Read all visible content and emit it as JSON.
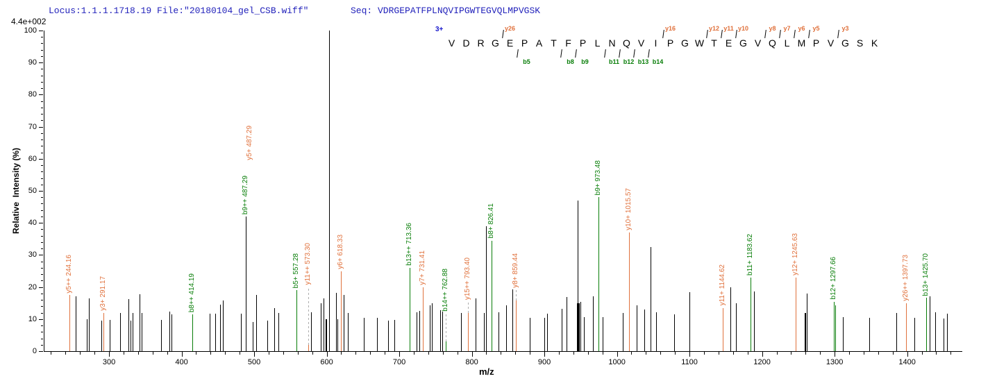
{
  "header": {
    "locus_file": "Locus:1.1.1.1718.19 File:\"20180104_gel_CSB.wiff\"",
    "seq": "Seq: VDRGEPATFPLNQVIPGWTEGVQLMPVGSK",
    "text_color": "#2222BB"
  },
  "base_peak_intensity": "4.4e+002",
  "colors": {
    "y_ion": "#E0713C",
    "b_ion": "#077D07",
    "unassigned": "#000000",
    "dash": "#ADADAD"
  },
  "chart_data": {
    "type": "bar",
    "subtype": "ms2-centroided-mass-spectrum",
    "xlabel": "m/z",
    "ylabel": "Relative  Intensity (%)",
    "xlim": [
      210,
      1475
    ],
    "ylim": [
      0,
      100
    ],
    "x_major_ticks": [
      300,
      400,
      500,
      600,
      700,
      800,
      900,
      1000,
      1100,
      1200,
      1300,
      1400
    ],
    "x_minor_step": 20,
    "y_major_step": 10,
    "y_minor_step": 2,
    "grid": false,
    "legend": "none",
    "sequence_annotation": {
      "charge": "3+",
      "letters": [
        "V",
        "D",
        "R",
        "G",
        "E",
        "P",
        "A",
        "T",
        "F",
        "P",
        "L",
        "N",
        "Q",
        "V",
        "I",
        "P",
        "G",
        "W",
        "T",
        "E",
        "G",
        "V",
        "Q",
        "L",
        "M",
        "P",
        "V",
        "G",
        "S",
        "K"
      ],
      "y_ions": [
        {
          "label": "y26",
          "pos": 4
        },
        {
          "label": "y16",
          "pos": 15
        },
        {
          "label": "y12",
          "pos": 18
        },
        {
          "label": "y11",
          "pos": 19
        },
        {
          "label": "y10",
          "pos": 20
        },
        {
          "label": "y8",
          "pos": 22
        },
        {
          "label": "y7",
          "pos": 23
        },
        {
          "label": "y6",
          "pos": 24
        },
        {
          "label": "y5",
          "pos": 25
        },
        {
          "label": "y3",
          "pos": 27
        }
      ],
      "b_ions": [
        {
          "label": "b5",
          "pos": 5
        },
        {
          "label": "b8",
          "pos": 8
        },
        {
          "label": "b9",
          "pos": 9
        },
        {
          "label": "b11",
          "pos": 11
        },
        {
          "label": "b12",
          "pos": 12
        },
        {
          "label": "b13",
          "pos": 13
        },
        {
          "label": "b14",
          "pos": 14
        }
      ]
    },
    "peaks": [
      {
        "mz": 244.16,
        "h": 17.5,
        "series": "y",
        "label": "y5++ 244.16"
      },
      {
        "mz": 253,
        "h": 17,
        "series": "u"
      },
      {
        "mz": 268,
        "h": 10,
        "series": "u"
      },
      {
        "mz": 271.5,
        "h": 16.5,
        "series": "u"
      },
      {
        "mz": 288,
        "h": 9.5,
        "series": "u"
      },
      {
        "mz": 291.17,
        "h": 12,
        "series": "y",
        "label": "y3+ 291.17"
      },
      {
        "mz": 300,
        "h": 9.7,
        "series": "u"
      },
      {
        "mz": 314,
        "h": 11.8,
        "series": "u"
      },
      {
        "mz": 326,
        "h": 16.3,
        "series": "u"
      },
      {
        "mz": 329,
        "h": 9.6,
        "series": "u"
      },
      {
        "mz": 331.5,
        "h": 12,
        "series": "u"
      },
      {
        "mz": 341.5,
        "h": 17.7,
        "series": "u"
      },
      {
        "mz": 343.8,
        "h": 12,
        "series": "u"
      },
      {
        "mz": 371,
        "h": 9.8,
        "series": "u"
      },
      {
        "mz": 382.4,
        "h": 12.3,
        "series": "u"
      },
      {
        "mz": 385,
        "h": 11.5,
        "series": "u"
      },
      {
        "mz": 414.19,
        "h": 11.5,
        "series": "b",
        "label": "b8++ 414.19"
      },
      {
        "mz": 437.8,
        "h": 11.7,
        "series": "u"
      },
      {
        "mz": 445,
        "h": 11.7,
        "series": "u"
      },
      {
        "mz": 452.5,
        "h": 14.5,
        "series": "u"
      },
      {
        "mz": 455.7,
        "h": 15.8,
        "series": "u"
      },
      {
        "mz": 481,
        "h": 11.7,
        "series": "u"
      },
      {
        "mz": 487.29,
        "h": 42,
        "series": "u",
        "label": "b9++ 487.29",
        "label_series": "b",
        "label2": "y5+ 487.29",
        "label2_series": "y",
        "label2_offset": 78
      },
      {
        "mz": 497.3,
        "h": 9.2,
        "series": "u"
      },
      {
        "mz": 502,
        "h": 17.5,
        "series": "u"
      },
      {
        "mz": 517.5,
        "h": 9.5,
        "series": "u"
      },
      {
        "mz": 527,
        "h": 13.5,
        "series": "u"
      },
      {
        "mz": 532,
        "h": 12,
        "series": "u"
      },
      {
        "mz": 557.28,
        "h": 19,
        "series": "b",
        "label": "b5+ 557.28"
      },
      {
        "mz": 573.3,
        "h": 2,
        "series": "y",
        "label": "y11++ 573.30",
        "dashTo": 20
      },
      {
        "mz": 577,
        "h": 12.1,
        "series": "u"
      },
      {
        "mz": 591.2,
        "h": 15,
        "series": "u"
      },
      {
        "mz": 594.3,
        "h": 16.5,
        "series": "u"
      },
      {
        "mz": 597.8,
        "h": 10,
        "series": "u",
        "w": 2
      },
      {
        "mz": 602,
        "h": 100,
        "series": "u"
      },
      {
        "mz": 611.9,
        "h": 18.2,
        "series": "u"
      },
      {
        "mz": 614,
        "h": 10,
        "series": "u"
      },
      {
        "mz": 618.33,
        "h": 25,
        "series": "y",
        "label": "y6+ 618.33"
      },
      {
        "mz": 622,
        "h": 17.5,
        "series": "u"
      },
      {
        "mz": 628,
        "h": 11.8,
        "series": "u"
      },
      {
        "mz": 650,
        "h": 10.3,
        "series": "u"
      },
      {
        "mz": 668,
        "h": 10.3,
        "series": "u"
      },
      {
        "mz": 684,
        "h": 9.6,
        "series": "u"
      },
      {
        "mz": 692,
        "h": 9.8,
        "series": "u"
      },
      {
        "mz": 713.36,
        "h": 26,
        "series": "b",
        "label": "b13++ 713.36"
      },
      {
        "mz": 723,
        "h": 12.1,
        "series": "u"
      },
      {
        "mz": 726.5,
        "h": 12.5,
        "series": "u"
      },
      {
        "mz": 731.41,
        "h": 20,
        "series": "y",
        "label": "y7+ 731.41"
      },
      {
        "mz": 740.7,
        "h": 14.3,
        "series": "u"
      },
      {
        "mz": 744,
        "h": 15,
        "series": "u"
      },
      {
        "mz": 755,
        "h": 12.7,
        "series": "u"
      },
      {
        "mz": 758,
        "h": 12.3,
        "series": "u"
      },
      {
        "mz": 762.88,
        "h": 3,
        "series": "b",
        "label": "b14++ 762.88",
        "dashTo": 11.7
      },
      {
        "mz": 784.5,
        "h": 12,
        "series": "u"
      },
      {
        "mz": 793.4,
        "h": 12,
        "series": "y",
        "label": "y15++ 793.40",
        "dashTo": 15.4
      },
      {
        "mz": 804,
        "h": 16.5,
        "series": "u"
      },
      {
        "mz": 816,
        "h": 11.8,
        "series": "u"
      },
      {
        "mz": 818.5,
        "h": 39,
        "series": "u"
      },
      {
        "mz": 826.41,
        "h": 34.5,
        "series": "b",
        "label": "b8+ 826.41"
      },
      {
        "mz": 836,
        "h": 12.1,
        "series": "u"
      },
      {
        "mz": 846,
        "h": 14.3,
        "series": "u"
      },
      {
        "mz": 855,
        "h": 19.2,
        "series": "u"
      },
      {
        "mz": 859.44,
        "h": 15.7,
        "series": "y",
        "label": "y8+ 859.44",
        "dashTo": 19
      },
      {
        "mz": 879,
        "h": 10.3,
        "series": "u"
      },
      {
        "mz": 899,
        "h": 10.5,
        "series": "u"
      },
      {
        "mz": 903,
        "h": 11.7,
        "series": "u"
      },
      {
        "mz": 923,
        "h": 13.2,
        "series": "u"
      },
      {
        "mz": 930,
        "h": 16.8,
        "series": "u"
      },
      {
        "mz": 943.8,
        "h": 15,
        "series": "u",
        "w": 4
      },
      {
        "mz": 945.3,
        "h": 47,
        "series": "u"
      },
      {
        "mz": 948.5,
        "h": 15.3,
        "series": "u"
      },
      {
        "mz": 953.5,
        "h": 10.7,
        "series": "u"
      },
      {
        "mz": 966,
        "h": 17.2,
        "series": "u"
      },
      {
        "mz": 973.48,
        "h": 48,
        "series": "b",
        "label": "b9+ 973.48"
      },
      {
        "mz": 979.5,
        "h": 10.7,
        "series": "u"
      },
      {
        "mz": 1007,
        "h": 11.8,
        "series": "u"
      },
      {
        "mz": 1015.57,
        "h": 37,
        "series": "y",
        "label": "y10+ 1015.57"
      },
      {
        "mz": 1026,
        "h": 14.3,
        "series": "u"
      },
      {
        "mz": 1037,
        "h": 13,
        "series": "u"
      },
      {
        "mz": 1045,
        "h": 32.5,
        "series": "u"
      },
      {
        "mz": 1053,
        "h": 12.1,
        "series": "u"
      },
      {
        "mz": 1078,
        "h": 11.4,
        "series": "u"
      },
      {
        "mz": 1099,
        "h": 18.4,
        "series": "u"
      },
      {
        "mz": 1144.62,
        "h": 13.5,
        "series": "y",
        "label": "y11+ 1144.62"
      },
      {
        "mz": 1155.5,
        "h": 20,
        "series": "u"
      },
      {
        "mz": 1163,
        "h": 14.9,
        "series": "u"
      },
      {
        "mz": 1183.62,
        "h": 23,
        "series": "b",
        "label": "b11+ 1183.62"
      },
      {
        "mz": 1188,
        "h": 18.6,
        "series": "u"
      },
      {
        "mz": 1245.63,
        "h": 23,
        "series": "y",
        "label": "y12+ 1245.63"
      },
      {
        "mz": 1258,
        "h": 12,
        "series": "u",
        "w": 2
      },
      {
        "mz": 1260.5,
        "h": 17.9,
        "series": "u"
      },
      {
        "mz": 1297.66,
        "h": 15.4,
        "series": "b",
        "label": "b12+ 1297.66"
      },
      {
        "mz": 1299.5,
        "h": 14.3,
        "series": "b"
      },
      {
        "mz": 1310.5,
        "h": 10.7,
        "series": "u"
      },
      {
        "mz": 1346.5,
        "h": 10.5,
        "series": "u"
      },
      {
        "mz": 1384.5,
        "h": 12,
        "series": "u"
      },
      {
        "mz": 1397.73,
        "h": 15,
        "series": "y",
        "label": "y26++ 1397.73"
      },
      {
        "mz": 1409,
        "h": 10.5,
        "series": "u"
      },
      {
        "mz": 1425.7,
        "h": 16.6,
        "series": "b",
        "label": "b13+ 1425.70"
      },
      {
        "mz": 1430.5,
        "h": 17.2,
        "series": "u"
      },
      {
        "mz": 1438,
        "h": 12.1,
        "series": "u"
      },
      {
        "mz": 1449,
        "h": 10.1,
        "series": "u"
      },
      {
        "mz": 1454,
        "h": 11.7,
        "series": "u"
      }
    ]
  }
}
